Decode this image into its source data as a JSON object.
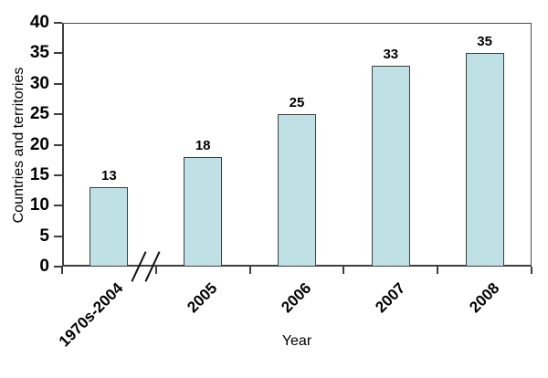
{
  "figure": {
    "background_color": "#ffffff"
  },
  "chart_data": {
    "type": "bar",
    "title": "",
    "categories": [
      "1970s-2004",
      "2005",
      "2006",
      "2007",
      "2008"
    ],
    "values": [
      13,
      18,
      25,
      33,
      35
    ],
    "xlabel": "Year",
    "ylabel": "Countries and territories",
    "ylim": [
      0,
      40
    ],
    "yticks": [
      0,
      5,
      10,
      15,
      20,
      25,
      30,
      35,
      40
    ],
    "grid": "off",
    "legend": "none",
    "data_labels": true,
    "x_tick_marks": "at category boundaries, outside",
    "axis_break": {
      "present": true,
      "symbol": "//",
      "location": "x-axis between first and second category"
    },
    "bar_fill_color": "#bfe0e4",
    "bar_border_color": "#3f3f3f",
    "axis_color": "#3f3f3f",
    "label_color": "#000000"
  }
}
